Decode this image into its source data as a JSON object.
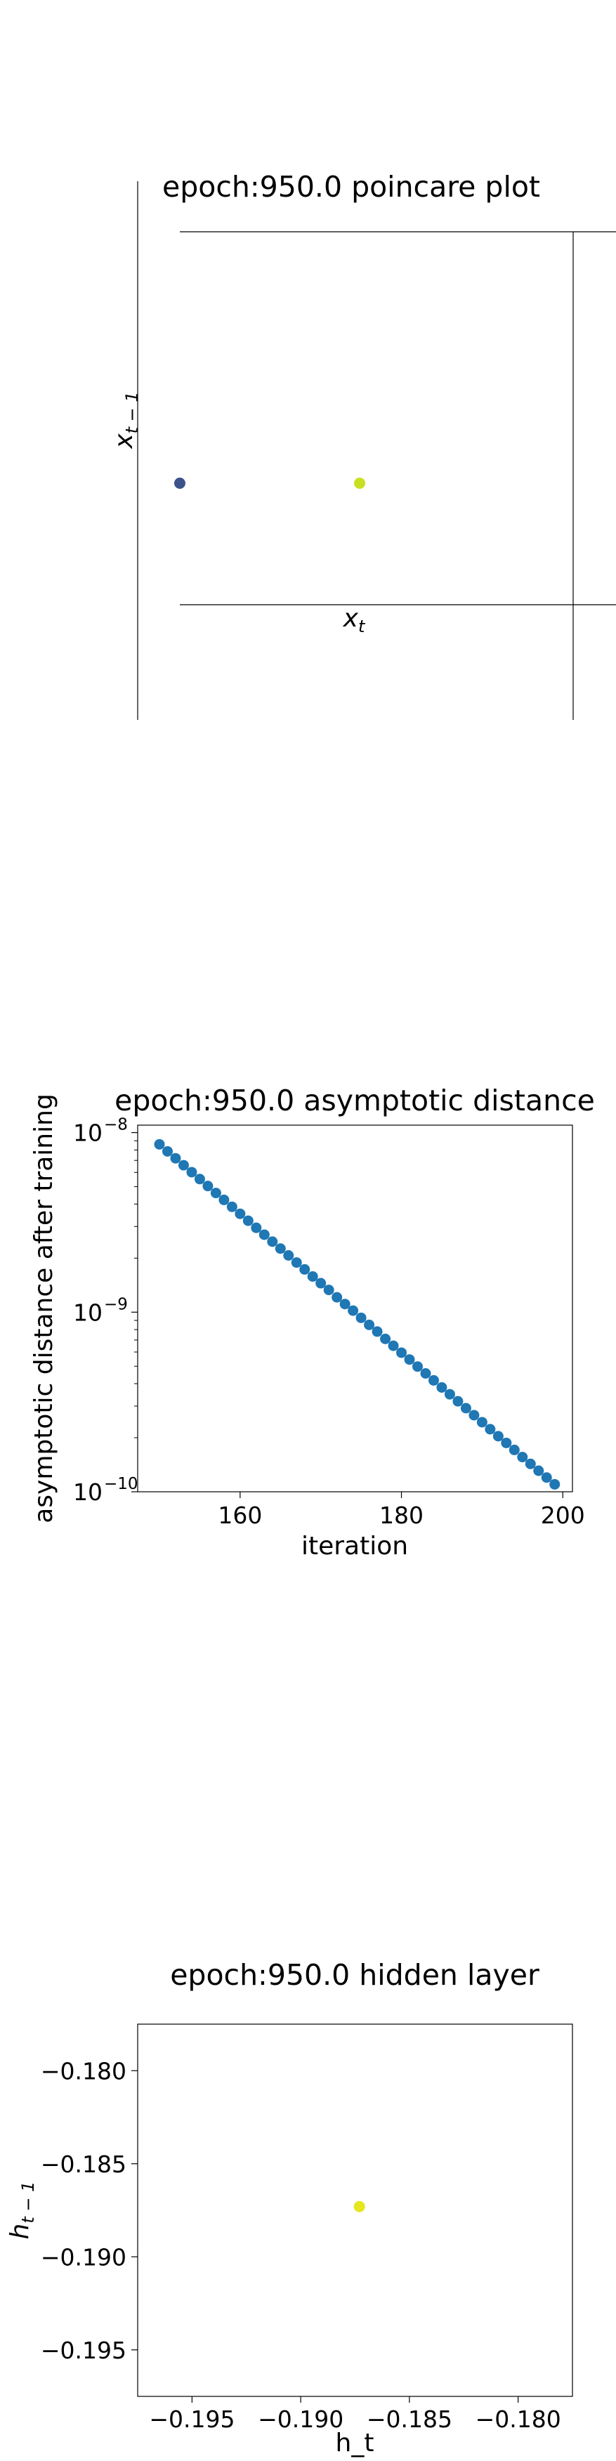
{
  "chart_data": [
    {
      "type": "scatter",
      "title": "epoch:950.0 poincare plot",
      "xlabel": "x_t",
      "ylabel": "x_{t-1}",
      "grid": false,
      "points": [
        {
          "x": 0.0,
          "y": 0.0,
          "color": "#3b528b"
        },
        {
          "x": 1.0,
          "y": 0.0,
          "color": "#c8e020"
        }
      ]
    },
    {
      "type": "scatter",
      "title": "epoch:950.0 asymptotic distance",
      "xlabel": "iteration",
      "ylabel": "asymptotic distance after training",
      "yscale": "log",
      "xlim": [
        147.3,
        201.2
      ],
      "ylim": [
        1e-10,
        1.1e-08
      ],
      "xticks": [
        "160",
        "180",
        "200"
      ],
      "yticks": [
        {
          "base": "10",
          "exp": "−10"
        },
        {
          "base": "10",
          "exp": "−9"
        },
        {
          "base": "10",
          "exp": "−8"
        }
      ],
      "color": "#1f77b4",
      "x": [
        150,
        151,
        152,
        153,
        154,
        155,
        156,
        157,
        158,
        159,
        160,
        161,
        162,
        163,
        164,
        165,
        166,
        167,
        168,
        169,
        170,
        171,
        172,
        173,
        174,
        175,
        176,
        177,
        178,
        179,
        180,
        181,
        182,
        183,
        184,
        185,
        186,
        187,
        188,
        189,
        190,
        191,
        192,
        193,
        194,
        195,
        196,
        197,
        198,
        199
      ],
      "y": [
        8.6e-09,
        7.86e-09,
        7.19e-09,
        6.58e-09,
        6.02e-09,
        5.51e-09,
        5.04e-09,
        4.61e-09,
        4.22e-09,
        3.86e-09,
        3.53e-09,
        3.23e-09,
        2.95e-09,
        2.7e-09,
        2.47e-09,
        2.26e-09,
        2.07e-09,
        1.89e-09,
        1.73e-09,
        1.58e-09,
        1.45e-09,
        1.33e-09,
        1.21e-09,
        1.11e-09,
        1.02e-09,
        9.3e-10,
        8.5e-10,
        7.8e-10,
        7.1e-10,
        6.5e-10,
        5.95e-10,
        5.45e-10,
        4.98e-10,
        4.56e-10,
        4.17e-10,
        3.81e-10,
        3.49e-10,
        3.19e-10,
        2.92e-10,
        2.67e-10,
        2.44e-10,
        2.23e-10,
        2.04e-10,
        1.87e-10,
        1.71e-10,
        1.56e-10,
        1.43e-10,
        1.31e-10,
        1.2e-10,
        1.1e-10
      ]
    },
    {
      "type": "scatter",
      "title": "epoch:950.0 hidden layer",
      "xlabel": "h_t",
      "ylabel": "h_{t-1}",
      "xlim": [
        -0.1975,
        -0.1775
      ],
      "ylim": [
        -0.1975,
        -0.1775
      ],
      "xticks": [
        "−0.195",
        "−0.190",
        "−0.185",
        "−0.180"
      ],
      "yticks": [
        "−0.180",
        "−0.185",
        "−0.190",
        "−0.195"
      ],
      "points": [
        {
          "x": -0.1873,
          "y": -0.1873,
          "color": "#e6e620"
        }
      ]
    }
  ]
}
